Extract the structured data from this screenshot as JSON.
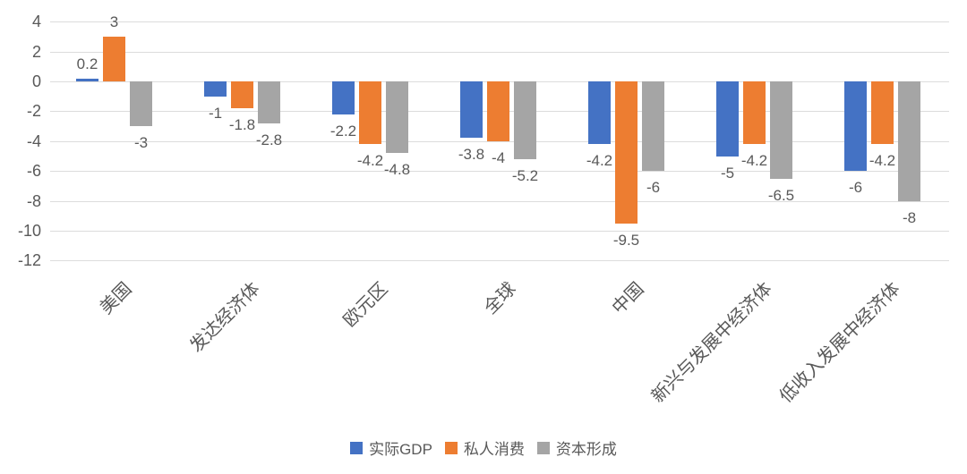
{
  "chart_data": {
    "type": "bar",
    "title": "",
    "categories": [
      "美国",
      "发达经济体",
      "欧元区",
      "全球",
      "中国",
      "新兴与发展中经济体",
      "低收入发展中经济体"
    ],
    "series": [
      {
        "name": "实际GDP",
        "color": "#4472C4",
        "values": [
          0.2,
          -1,
          -2.2,
          -3.8,
          -4.2,
          -5,
          -6
        ]
      },
      {
        "name": "私人消费",
        "color": "#ED7D31",
        "values": [
          3,
          -1.8,
          -4.2,
          -4,
          -9.5,
          -4.2,
          -4.2
        ]
      },
      {
        "name": "资本形成",
        "color": "#A5A5A5",
        "values": [
          -3,
          -2.8,
          -4.8,
          -5.2,
          -6,
          -6.5,
          -8
        ]
      }
    ],
    "y_axis": {
      "min": -12,
      "max": 4,
      "step": 2,
      "ticks": [
        4,
        2,
        0,
        -2,
        -4,
        -6,
        -8,
        -10,
        -12
      ]
    },
    "grid": true,
    "data_labels": true,
    "legend_position": "bottom",
    "styles": {
      "background": "#FFFFFF",
      "axis_text_color": "#595959",
      "gridline_color": "#DCDCDC"
    }
  }
}
